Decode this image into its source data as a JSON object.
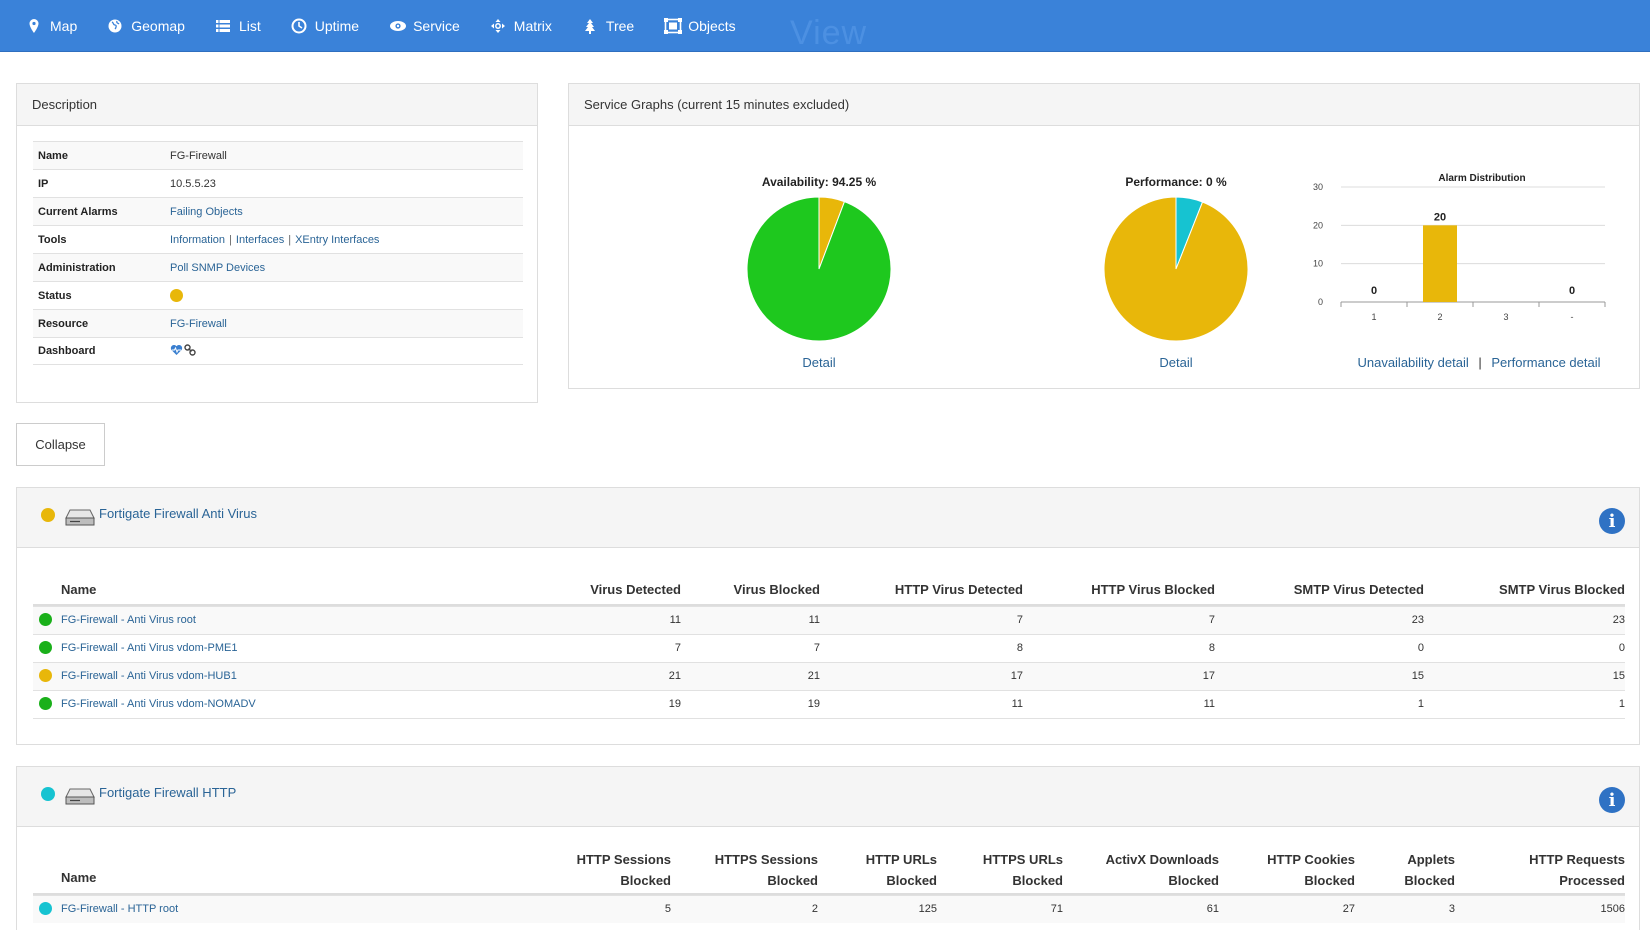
{
  "nav": {
    "ghost_title": "View",
    "items": [
      {
        "label": "Map",
        "icon": "map-marker-icon"
      },
      {
        "label": "Geomap",
        "icon": "globe-icon"
      },
      {
        "label": "List",
        "icon": "list-icon"
      },
      {
        "label": "Uptime",
        "icon": "clock-icon"
      },
      {
        "label": "Service",
        "icon": "eye-icon"
      },
      {
        "label": "Matrix",
        "icon": "crosshair-icon"
      },
      {
        "label": "Tree",
        "icon": "tree-icon"
      },
      {
        "label": "Objects",
        "icon": "objects-icon"
      }
    ]
  },
  "description": {
    "title": "Description",
    "rows": [
      {
        "key": "Name",
        "value": "FG-Firewall"
      },
      {
        "key": "IP",
        "value": "10.5.5.23"
      },
      {
        "key": "Current Alarms",
        "value": "Failing Objects"
      },
      {
        "key": "Tools",
        "links": [
          "Information",
          "Interfaces",
          "XEntry Interfaces"
        ]
      },
      {
        "key": "Administration",
        "value": "Poll SNMP Devices"
      },
      {
        "key": "Status",
        "status_color": "#e8b70a"
      },
      {
        "key": "Resource",
        "value": "FG-Firewall"
      },
      {
        "key": "Dashboard",
        "icons": [
          "heartbeat-icon",
          "link-icon"
        ]
      }
    ]
  },
  "service_graphs": {
    "title": "Service Graphs (current 15 minutes excluded)",
    "availability": {
      "label": "Availability: 94.25 %",
      "value": 94.25,
      "detail": "Detail"
    },
    "performance": {
      "label": "Performance:  0 %",
      "value": 0,
      "teal_share": 6,
      "detail": "Detail"
    },
    "unavailability_detail": "Unavailability detail",
    "separator": "|",
    "performance_detail": "Performance detail",
    "colors": {
      "green": "#1ec81e",
      "yellow": "#e8b70a",
      "teal": "#16c3d1"
    }
  },
  "chart_data": {
    "type": "bar",
    "title": "Alarm Distribution",
    "categories": [
      "1",
      "2",
      "3",
      "-"
    ],
    "values": [
      0,
      20,
      null,
      0
    ],
    "data_labels": [
      "0",
      "20",
      "",
      "0"
    ],
    "yticks": [
      "0",
      "10",
      "20",
      "30"
    ],
    "ylim": [
      0,
      30
    ],
    "grid": true,
    "bar_color": "#e8b70a"
  },
  "collapse_label": "Collapse",
  "antivirus": {
    "title": "Fortigate Firewall Anti Virus",
    "status_color": "#e8b70a",
    "columns": [
      "Name",
      "Virus Detected",
      "Virus Blocked",
      "HTTP Virus Detected",
      "HTTP Virus Blocked",
      "SMTP Virus Detected",
      "SMTP Virus Blocked"
    ],
    "rows": [
      {
        "status_color": "#1ab01a",
        "name": "FG-Firewall - Anti Virus root",
        "values": [
          "11",
          "11",
          "7",
          "7",
          "23",
          "23"
        ]
      },
      {
        "status_color": "#1ab01a",
        "name": "FG-Firewall - Anti Virus vdom-PME1",
        "values": [
          "7",
          "7",
          "8",
          "8",
          "0",
          "0"
        ]
      },
      {
        "status_color": "#e8b70a",
        "name": "FG-Firewall - Anti Virus vdom-HUB1",
        "values": [
          "21",
          "21",
          "17",
          "17",
          "15",
          "15"
        ]
      },
      {
        "status_color": "#1ab01a",
        "name": "FG-Firewall - Anti Virus vdom-NOMADV",
        "values": [
          "19",
          "19",
          "11",
          "11",
          "1",
          "1"
        ]
      }
    ]
  },
  "http": {
    "title": "Fortigate Firewall HTTP",
    "status_color": "#16c3d1",
    "columns": [
      {
        "l1": "",
        "l2": "Name"
      },
      {
        "l1": "HTTP Sessions",
        "l2": "Blocked"
      },
      {
        "l1": "HTTPS Sessions",
        "l2": "Blocked"
      },
      {
        "l1": "HTTP URLs",
        "l2": "Blocked"
      },
      {
        "l1": "HTTPS URLs",
        "l2": "Blocked"
      },
      {
        "l1": "ActivX Downloads",
        "l2": "Blocked"
      },
      {
        "l1": "HTTP Cookies",
        "l2": "Blocked"
      },
      {
        "l1": "Applets",
        "l2": "Blocked"
      },
      {
        "l1": "HTTP Requests",
        "l2": "Processed"
      }
    ],
    "rows": [
      {
        "status_color": "#16c3d1",
        "name": "FG-Firewall - HTTP root",
        "values": [
          "5",
          "2",
          "125",
          "71",
          "61",
          "27",
          "3",
          "1506"
        ]
      }
    ]
  }
}
